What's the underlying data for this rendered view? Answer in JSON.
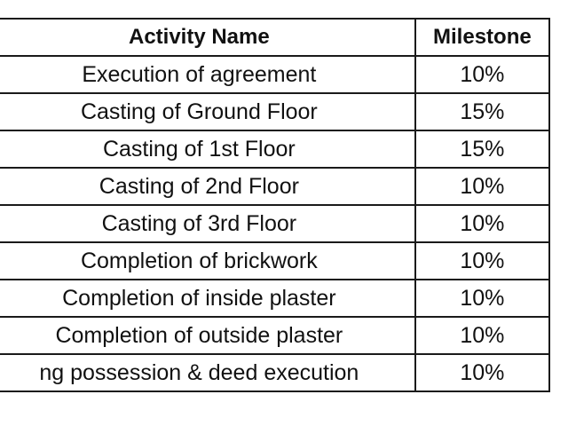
{
  "table": {
    "headers": {
      "activity": "Activity Name",
      "milestone": "Milestone"
    },
    "rows": [
      {
        "activity": "Execution of agreement",
        "milestone": "10%"
      },
      {
        "activity": "Casting of Ground Floor",
        "milestone": "15%"
      },
      {
        "activity": "Casting of 1st Floor",
        "milestone": "15%"
      },
      {
        "activity": "Casting of 2nd Floor",
        "milestone": "10%"
      },
      {
        "activity": "Casting of 3rd Floor",
        "milestone": "10%"
      },
      {
        "activity": "Completion of brickwork",
        "milestone": "10%"
      },
      {
        "activity": "Completion of inside plaster",
        "milestone": "10%"
      },
      {
        "activity": "Completion of outside plaster",
        "milestone": "10%"
      },
      {
        "activity": "ng possession & deed execution",
        "milestone": "10%"
      }
    ]
  }
}
